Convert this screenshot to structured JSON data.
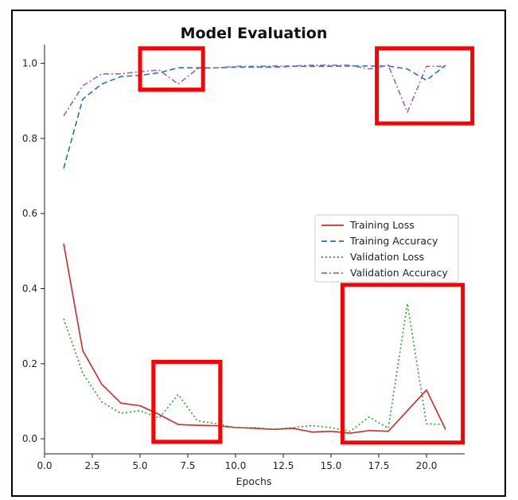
{
  "chart_data": {
    "type": "line",
    "title": "Model Evaluation",
    "xlabel": "Epochs",
    "ylabel": "",
    "xlim": [
      0,
      22
    ],
    "ylim": [
      -0.04,
      1.05
    ],
    "x_ticks": [
      0.0,
      2.5,
      5.0,
      7.5,
      10.0,
      12.5,
      15.0,
      17.5,
      20.0
    ],
    "x_tick_labels": [
      "0.0",
      "2.5",
      "5.0",
      "7.5",
      "10.0",
      "12.5",
      "15.0",
      "17.5",
      "20.0"
    ],
    "y_ticks": [
      0.0,
      0.2,
      0.4,
      0.6,
      0.8,
      1.0
    ],
    "y_tick_labels": [
      "0.0",
      "0.2",
      "0.4",
      "0.6",
      "0.8",
      "1.0"
    ],
    "grid": false,
    "legend_position": "center-right",
    "x": [
      1,
      2,
      3,
      4,
      5,
      6,
      7,
      8,
      9,
      10,
      11,
      12,
      13,
      14,
      15,
      16,
      17,
      18,
      19,
      20,
      21
    ],
    "series": [
      {
        "name": "Training Loss",
        "color": "#d62728",
        "style": "solid",
        "values": [
          0.52,
          0.235,
          0.145,
          0.095,
          0.088,
          0.065,
          0.038,
          0.036,
          0.035,
          0.03,
          0.028,
          0.025,
          0.028,
          0.018,
          0.02,
          0.015,
          0.022,
          0.02,
          0.075,
          0.13,
          0.025
        ]
      },
      {
        "name": "Training Accuracy",
        "color": "#1f77b4",
        "style": "dashed",
        "values": [
          0.72,
          0.905,
          0.945,
          0.965,
          0.968,
          0.975,
          0.988,
          0.988,
          0.988,
          0.99,
          0.99,
          0.99,
          0.992,
          0.992,
          0.992,
          0.993,
          0.993,
          0.993,
          0.985,
          0.955,
          0.995
        ]
      },
      {
        "name": "Validation Loss",
        "color": "#2ca02c",
        "style": "dotted",
        "values": [
          0.32,
          0.175,
          0.098,
          0.068,
          0.075,
          0.055,
          0.118,
          0.048,
          0.04,
          0.03,
          0.03,
          0.025,
          0.03,
          0.035,
          0.03,
          0.02,
          0.058,
          0.028,
          0.36,
          0.04,
          0.038
        ]
      },
      {
        "name": "Validation Accuracy",
        "color": "#9467bd",
        "style": "dashdot",
        "values": [
          0.86,
          0.94,
          0.972,
          0.972,
          0.978,
          0.982,
          0.945,
          0.985,
          0.988,
          0.992,
          0.992,
          0.993,
          0.993,
          0.995,
          0.995,
          0.995,
          0.985,
          0.995,
          0.87,
          0.992,
          0.992
        ]
      }
    ],
    "annotations": [
      {
        "type": "highlight-box",
        "color": "#ff0000",
        "x_range": [
          5.0,
          8.3
        ],
        "y_range": [
          0.93,
          1.04
        ]
      },
      {
        "type": "highlight-box",
        "color": "#ff0000",
        "x_range": [
          17.4,
          22.4
        ],
        "y_range": [
          0.84,
          1.04
        ]
      },
      {
        "type": "highlight-box",
        "color": "#ff0000",
        "x_range": [
          5.7,
          9.2
        ],
        "y_range": -0.008
      },
      {
        "type": "highlight-box",
        "color": "#ff0000",
        "x_range": [
          15.6,
          21.9
        ],
        "y_range": [
          -0.01,
          0.41
        ]
      }
    ]
  }
}
